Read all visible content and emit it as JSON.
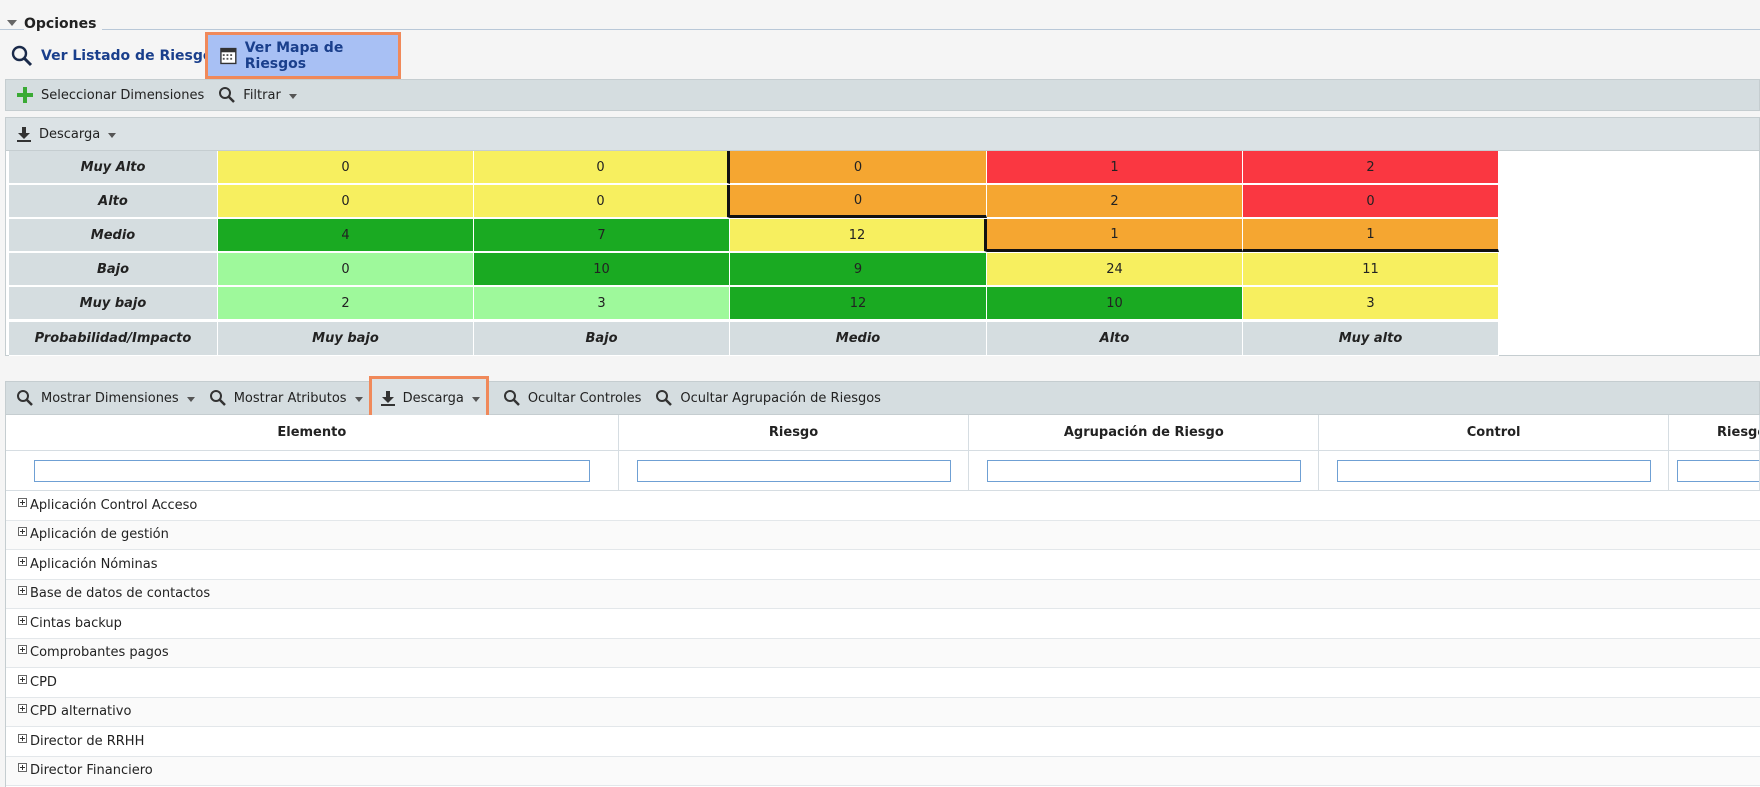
{
  "section": {
    "title": "Opciones"
  },
  "views": {
    "list_label": "Ver Listado de Riesgos",
    "map_label": "Ver Mapa de Riesgos"
  },
  "toolbar1": {
    "select_dims": "Seleccionar Dimensiones",
    "filter": "Filtrar"
  },
  "toolbar2": {
    "download": "Descarga"
  },
  "matrix": {
    "rows": [
      {
        "label": "Muy Alto",
        "cells": [
          "0",
          "0",
          "0",
          "1",
          "2"
        ]
      },
      {
        "label": "Alto",
        "cells": [
          "0",
          "0",
          "0",
          "2",
          "0"
        ]
      },
      {
        "label": "Medio",
        "cells": [
          "4",
          "7",
          "12",
          "1",
          "1"
        ]
      },
      {
        "label": "Bajo",
        "cells": [
          "0",
          "10",
          "9",
          "24",
          "11"
        ]
      },
      {
        "label": "Muy bajo",
        "cells": [
          "2",
          "3",
          "12",
          "10",
          "3"
        ]
      }
    ],
    "axis_label": "Probabilidad/Impacto",
    "columns": [
      "Muy bajo",
      "Bajo",
      "Medio",
      "Alto",
      "Muy alto"
    ],
    "colors": {
      "light_green": "#9ef99b",
      "dark_green": "#1aaa22",
      "yellow": "#f7ef5f",
      "orange": "#f5a631",
      "red": "#fa3741"
    }
  },
  "toolbar3": {
    "show_dims": "Mostrar Dimensiones",
    "show_attrs": "Mostrar Atributos",
    "download": "Descarga",
    "hide_controls": "Ocultar Controles",
    "hide_grouping": "Ocultar Agrupación de Riesgos"
  },
  "grid": {
    "columns": [
      "Elemento",
      "Riesgo",
      "Agrupación de Riesgo",
      "Control",
      "Riesgo"
    ],
    "rows": [
      "Aplicación Control Acceso",
      "Aplicación de gestión",
      "Aplicación Nóminas",
      "Base de datos de contactos",
      "Cintas backup",
      "Comprobantes pagos",
      "CPD",
      "CPD alternativo",
      "Director de RRHH",
      "Director Financiero"
    ]
  }
}
